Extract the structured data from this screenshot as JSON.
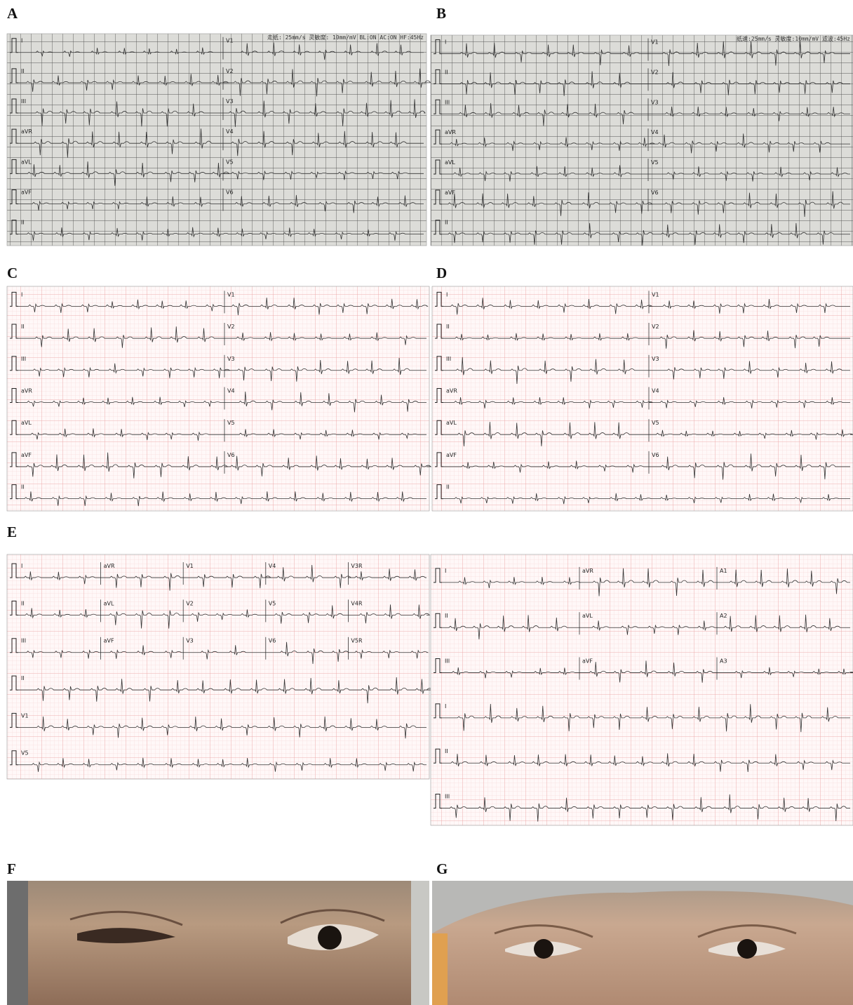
{
  "panels": [
    {
      "label": "A",
      "header": "走纸: 25mm/s  灵敏度: 10mm/mV  BL:ON  AC:ON  HF:45Hz",
      "rows": [
        [
          "I",
          "V1"
        ],
        [
          "II",
          "V2"
        ],
        [
          "III",
          "V3"
        ],
        [
          "aVR",
          "V4"
        ],
        [
          "aVL",
          "V5"
        ],
        [
          "aVF",
          "V6"
        ],
        [
          "II"
        ]
      ]
    },
    {
      "label": "B",
      "header": "纸速:25mm/s  灵敏度:10mm/mV  滤波:45Hz",
      "rows": [
        [
          "I",
          "V1"
        ],
        [
          "II",
          "V2"
        ],
        [
          "III",
          "V3"
        ],
        [
          "aVR",
          "V4"
        ],
        [
          "aVL",
          "V5"
        ],
        [
          "aVF",
          "V6"
        ],
        [
          "II"
        ]
      ]
    },
    {
      "label": "C",
      "rows": [
        [
          "I",
          "V1"
        ],
        [
          "II",
          "V2"
        ],
        [
          "III",
          "V3"
        ],
        [
          "aVR",
          "V4"
        ],
        [
          "aVL",
          "V5"
        ],
        [
          "aVF",
          "V6"
        ],
        [
          "II"
        ]
      ]
    },
    {
      "label": "D",
      "rows": [
        [
          "I",
          "V1"
        ],
        [
          "II",
          "V2"
        ],
        [
          "III",
          "V3"
        ],
        [
          "aVR",
          "V4"
        ],
        [
          "aVL",
          "V5"
        ],
        [
          "aVF",
          "V6"
        ],
        [
          "II"
        ]
      ]
    },
    {
      "label": "E",
      "rows": [
        [
          "I",
          "aVR",
          "V1",
          "V4",
          "V3R"
        ],
        [
          "II",
          "aVL",
          "V2",
          "V5",
          "V4R"
        ],
        [
          "III",
          "aVF",
          "V3",
          "V6",
          "V5R"
        ],
        [
          "II"
        ],
        [
          "V1"
        ],
        [
          "V5"
        ]
      ]
    },
    {
      "rows": [
        [
          "I",
          "aVR",
          "A1"
        ],
        [
          "II",
          "aVL",
          "A2"
        ],
        [
          "III",
          "aVF",
          "A3"
        ],
        [
          "I"
        ],
        [
          "II"
        ],
        [
          "III"
        ]
      ]
    }
  ],
  "photos": [
    {
      "label": "F"
    },
    {
      "label": "G"
    }
  ]
}
